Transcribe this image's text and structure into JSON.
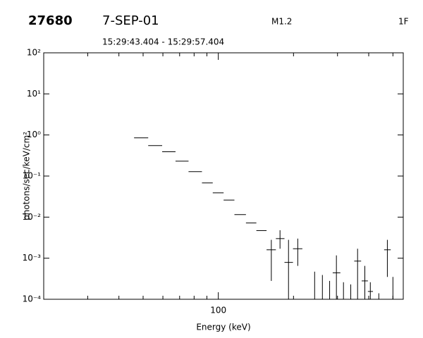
{
  "chart_data": {
    "type": "scatter",
    "header": {
      "id": "27680",
      "date": "7-SEP-01",
      "class": "M1.2",
      "flag": "1F",
      "time_range": "15:29:43.404 - 15:29:57.404"
    },
    "x_label": "Energy (keV)",
    "y_label": "photons/sec/keV/cm²",
    "x_log": true,
    "y_log": true,
    "color": "#000000",
    "xlim": [
      20,
      550
    ],
    "ylim": [
      0.0001,
      100
    ],
    "xticks": [
      100
    ],
    "xminorticks": [
      20,
      30,
      40,
      50,
      60,
      70,
      80,
      90,
      200,
      300,
      400,
      500
    ],
    "yticks": [
      {
        "value": 0.0001,
        "label": "10⁻⁴"
      },
      {
        "value": 0.001,
        "label": "10⁻³"
      },
      {
        "value": 0.01,
        "label": "10⁻²"
      },
      {
        "value": 0.1,
        "label": "10⁻¹"
      },
      {
        "value": 1,
        "label": "10⁰"
      },
      {
        "value": 10,
        "label": "10¹"
      },
      {
        "value": 100,
        "label": "10²"
      }
    ],
    "x": [
      49.1,
      55.9,
      63.2,
      71.6,
      81,
      90.4,
      100,
      110.6,
      122.8,
      135,
      148,
      163,
      176.6,
      191,
      208,
      243,
      261,
      279,
      297,
      317,
      339,
      361,
      386,
      406,
      439,
      475,
      500
    ],
    "x_low": [
      46,
      52.4,
      59.6,
      67.4,
      76,
      86,
      95,
      105,
      116,
      129,
      142,
      156,
      170,
      184,
      199,
      null,
      null,
      null,
      287,
      null,
      null,
      350,
      375,
      397,
      null,
      461,
      null
    ],
    "x_high": [
      52.4,
      59.6,
      67.4,
      76,
      86,
      95,
      105,
      116,
      129,
      142,
      156,
      170,
      184,
      199,
      217,
      null,
      null,
      null,
      308,
      null,
      null,
      373,
      397,
      416,
      null,
      490,
      null
    ],
    "values": [
      0.85,
      0.55,
      0.39,
      0.23,
      0.128,
      0.068,
      0.039,
      0.026,
      0.0115,
      0.0072,
      0.0047,
      0.0016,
      0.003,
      0.00079,
      0.0017,
      null,
      null,
      null,
      0.00044,
      null,
      null,
      0.00085,
      0.00028,
      0.000155,
      null,
      0.0016,
      null
    ],
    "y_low": [
      null,
      null,
      null,
      null,
      null,
      null,
      null,
      null,
      null,
      null,
      null,
      0.00028,
      0.0017,
      1e-05,
      0.00065,
      1e-05,
      1e-05,
      1e-05,
      1e-05,
      1e-05,
      1e-05,
      1e-05,
      1e-05,
      1e-05,
      1e-05,
      0.00035,
      1e-05
    ],
    "y_high": [
      null,
      null,
      null,
      null,
      null,
      null,
      null,
      null,
      null,
      null,
      null,
      0.0028,
      0.0048,
      0.0028,
      0.003,
      0.00047,
      0.00039,
      0.00028,
      0.00117,
      0.00026,
      0.00023,
      0.0017,
      0.00065,
      0.00026,
      0.00014,
      0.0028,
      0.00035
    ]
  }
}
